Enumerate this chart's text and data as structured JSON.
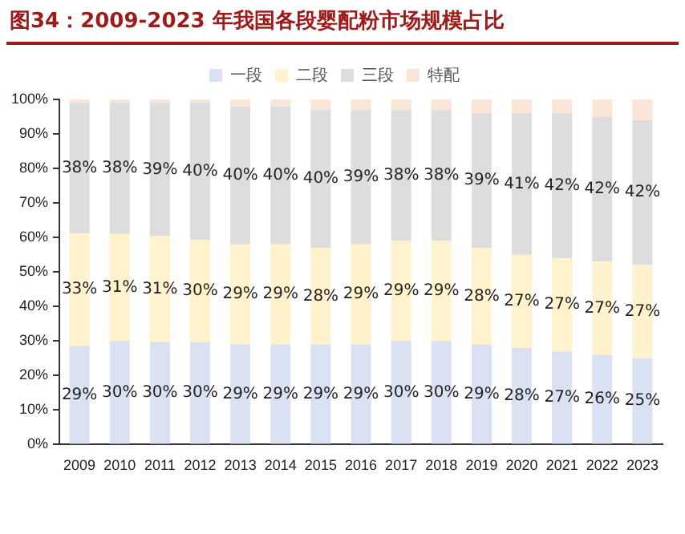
{
  "chart_data": {
    "type": "bar",
    "title": "图34：2009-2023 年我国各段婴配粉市场规模占比",
    "stacked": true,
    "legend": "top",
    "grid": false,
    "categories": [
      "2009",
      "2010",
      "2011",
      "2012",
      "2013",
      "2014",
      "2015",
      "2016",
      "2017",
      "2018",
      "2019",
      "2020",
      "2021",
      "2022",
      "2023"
    ],
    "series": [
      {
        "name": "一段",
        "color": "#dae1f3",
        "values": [
          28.6,
          30,
          29.7,
          29.6,
          29,
          29,
          29,
          29,
          30,
          30,
          29,
          28,
          27,
          26,
          25
        ],
        "value_labels": [
          "29%",
          "30%",
          "30%",
          "30%",
          "29%",
          "29%",
          "29%",
          "29%",
          "30%",
          "30%",
          "29%",
          "28%",
          "27%",
          "26%",
          "25%"
        ]
      },
      {
        "name": "二段",
        "color": "#fff2cc",
        "values": [
          32.6,
          31,
          30.7,
          29.7,
          29,
          29,
          28,
          29,
          29,
          29,
          28,
          27,
          27,
          27,
          27
        ],
        "value_labels": [
          "33%",
          "31%",
          "31%",
          "30%",
          "29%",
          "29%",
          "28%",
          "29%",
          "29%",
          "29%",
          "28%",
          "27%",
          "27%",
          "27%",
          "27%"
        ]
      },
      {
        "name": "三段",
        "color": "#dddddd",
        "values": [
          37.8,
          38,
          38.6,
          39.7,
          40,
          40,
          40,
          39,
          38,
          38,
          39,
          41,
          42,
          42,
          42
        ],
        "value_labels": [
          "38%",
          "38%",
          "39%",
          "40%",
          "40%",
          "40%",
          "40%",
          "39%",
          "38%",
          "38%",
          "39%",
          "41%",
          "42%",
          "42%",
          "42%"
        ]
      },
      {
        "name": "特配",
        "color": "#fbe5d6",
        "values": [
          1,
          1,
          1,
          1,
          2,
          2,
          3,
          3,
          3,
          3,
          4,
          4,
          4,
          5,
          6
        ]
      }
    ],
    "ylim": [
      0,
      100
    ],
    "yticks": [
      {
        "value": 0,
        "label": "0%"
      },
      {
        "value": 10,
        "label": "10%"
      },
      {
        "value": 20,
        "label": "20%"
      },
      {
        "value": 30,
        "label": "30%"
      },
      {
        "value": 40,
        "label": "40%"
      },
      {
        "value": 50,
        "label": "50%"
      },
      {
        "value": 60,
        "label": "60%"
      },
      {
        "value": 70,
        "label": "70%"
      },
      {
        "value": 80,
        "label": "80%"
      },
      {
        "value": 90,
        "label": "90%"
      },
      {
        "value": 100,
        "label": "100%"
      }
    ]
  }
}
